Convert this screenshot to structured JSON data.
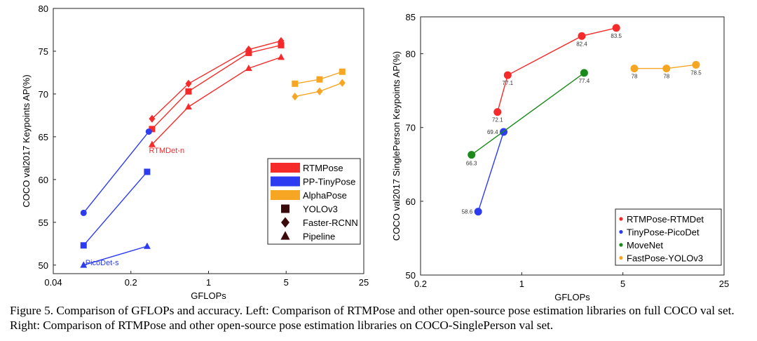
{
  "colors": {
    "rtmpose": "#f52b2b",
    "tinypose": "#2d3cf0",
    "alphapose": "#f6a623",
    "movenet": "#1a8a1a",
    "marker_dark": "#3a0a0a"
  },
  "chart_data": [
    {
      "type": "scatter",
      "xscale": "log",
      "xlabel": "GFLOPs",
      "ylabel": "COCO val2017 Keypoints AP(%)",
      "xlim": [
        0.04,
        25
      ],
      "ylim": [
        49,
        80
      ],
      "xticks": [
        "0.04",
        "0.2",
        "1",
        "5",
        "25"
      ],
      "yticks": [
        "50",
        "55",
        "60",
        "65",
        "70",
        "75",
        "80"
      ],
      "grid": false,
      "legend_position": "lower-right",
      "legend": [
        {
          "label": "RTMPose",
          "kind": "color",
          "color": "#f52b2b"
        },
        {
          "label": "PP-TinyPose",
          "kind": "color",
          "color": "#2d3cf0"
        },
        {
          "label": "AlphaPose",
          "kind": "color",
          "color": "#f6a623"
        },
        {
          "label": "YOLOv3",
          "kind": "square"
        },
        {
          "label": "Faster-RCNN",
          "kind": "diamond"
        },
        {
          "label": "Pipeline",
          "kind": "triangle"
        }
      ],
      "annotations": [
        {
          "text": "RTMDet-n",
          "x": 0.42,
          "y": 63.1,
          "color": "#f52b2b"
        },
        {
          "text": "PicoDet-s",
          "x": 0.11,
          "y": 50.0,
          "color": "#2d3cf0"
        }
      ],
      "series": [
        {
          "group": "RTMPose",
          "marker": "diamond",
          "color": "#f52b2b",
          "x": [
            0.31,
            0.66,
            2.3,
            4.5
          ],
          "y": [
            67.1,
            71.2,
            75.2,
            76.2
          ]
        },
        {
          "group": "RTMPose",
          "marker": "square",
          "color": "#f52b2b",
          "x": [
            0.31,
            0.66,
            2.3,
            4.5
          ],
          "y": [
            65.9,
            70.3,
            74.8,
            75.7
          ]
        },
        {
          "group": "RTMPose",
          "marker": "triangle",
          "color": "#f52b2b",
          "x": [
            0.31,
            0.66,
            2.3,
            4.5
          ],
          "y": [
            64.1,
            68.5,
            73.0,
            74.3
          ]
        },
        {
          "group": "PP-TinyPose",
          "marker": "circle",
          "color": "#2d3cf0",
          "x": [
            0.075,
            0.29
          ],
          "y": [
            56.1,
            65.6
          ]
        },
        {
          "group": "PP-TinyPose",
          "marker": "square",
          "color": "#2d3cf0",
          "x": [
            0.075,
            0.28
          ],
          "y": [
            52.3,
            60.9
          ]
        },
        {
          "group": "PP-TinyPose",
          "marker": "triangle",
          "color": "#2d3cf0",
          "x": [
            0.075,
            0.28
          ],
          "y": [
            50.0,
            52.2
          ]
        },
        {
          "group": "AlphaPose",
          "marker": "square",
          "color": "#f6a623",
          "x": [
            6.0,
            10.0,
            16.0
          ],
          "y": [
            71.2,
            71.7,
            72.6
          ]
        },
        {
          "group": "AlphaPose",
          "marker": "diamond",
          "color": "#f6a623",
          "x": [
            6.0,
            10.0,
            16.0
          ],
          "y": [
            69.7,
            70.3,
            71.3
          ]
        }
      ]
    },
    {
      "type": "line",
      "xscale": "log",
      "xlabel": "GFLOPs",
      "ylabel": "COCO val2017 SinglePerson Keypoints AP(%)",
      "xlim": [
        0.2,
        25
      ],
      "ylim": [
        50,
        85
      ],
      "xticks": [
        "0.2",
        "1",
        "5",
        "25"
      ],
      "yticks": [
        "50",
        "60",
        "70",
        "80",
        "85"
      ],
      "grid": false,
      "legend_position": "lower-right",
      "series": [
        {
          "name": "RTMPose-RTMDet",
          "color": "#f52b2b",
          "x": [
            0.68,
            0.8,
            2.6,
            4.5
          ],
          "y": [
            72.1,
            77.1,
            82.4,
            83.5
          ],
          "labels": [
            "72.1",
            "77.1",
            "82.4",
            "83.5"
          ]
        },
        {
          "name": "TinyPose-PicoDet",
          "color": "#2d3cf0",
          "x": [
            0.5,
            0.75
          ],
          "y": [
            58.6,
            69.4
          ],
          "labels": [
            "58.6",
            "69.4"
          ]
        },
        {
          "name": "MoveNet",
          "color": "#1a8a1a",
          "x": [
            0.45,
            2.7
          ],
          "y": [
            66.3,
            77.4
          ],
          "labels": [
            "66.3",
            "77.4"
          ]
        },
        {
          "name": "FastPose-YOLOv3",
          "color": "#f6a623",
          "x": [
            6.0,
            10.0,
            16.0
          ],
          "y": [
            78.0,
            78.0,
            78.5
          ],
          "labels": [
            "78",
            "78",
            "78.5"
          ]
        }
      ]
    }
  ],
  "caption": "Figure 5. Comparison of GFLOPs and accuracy. Left: Comparison of RTMPose and other open-source pose estimation libraries on full COCO val set. Right: Comparison of RTMPose and other open-source pose estimation libraries on COCO-SinglePerson val set."
}
